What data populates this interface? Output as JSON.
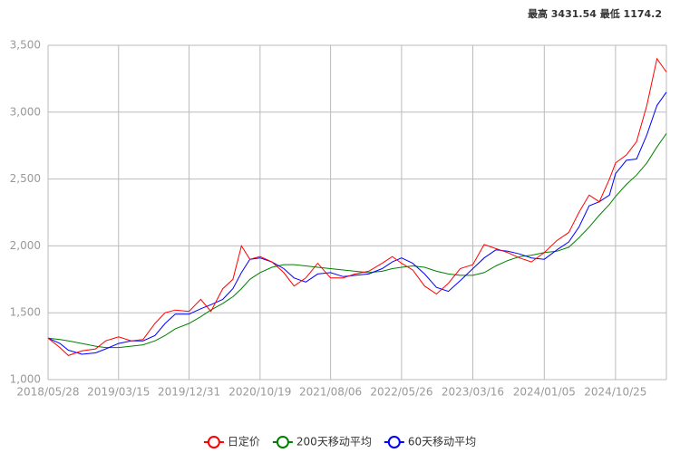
{
  "chart_data": {
    "type": "line",
    "summary": "最高 3431.54 最低 1174.2",
    "x": [
      "2018/05/28",
      "2018/07/16",
      "2018/08/20",
      "2018/10/15",
      "2018/12/10",
      "2019/01/21",
      "2019/03/15",
      "2019/05/06",
      "2019/06/24",
      "2019/08/12",
      "2019/09/23",
      "2019/11/04",
      "2019/12/31",
      "2020/02/17",
      "2020/03/30",
      "2020/05/18",
      "2020/06/29",
      "2020/08/03",
      "2020/09/07",
      "2020/10/19",
      "2020/12/07",
      "2021/01/25",
      "2021/03/08",
      "2021/04/26",
      "2021/06/14",
      "2021/08/06",
      "2021/09/27",
      "2021/11/15",
      "2022/01/10",
      "2022/03/07",
      "2022/04/18",
      "2022/05/26",
      "2022/07/11",
      "2022/08/29",
      "2022/10/17",
      "2022/12/05",
      "2023/01/23",
      "2023/03/16",
      "2023/05/02",
      "2023/06/19",
      "2023/08/07",
      "2023/09/25",
      "2023/11/13",
      "2024/01/05",
      "2024/02/26",
      "2024/04/15",
      "2024/05/27",
      "2024/07/08",
      "2024/08/19",
      "2024/09/30",
      "2024/10/25",
      "2024/12/09",
      "2025/01/20",
      "2025/03/03",
      "2025/04/14",
      "2025/05/23"
    ],
    "series": [
      {
        "name": "日定价",
        "color": "#ff0000",
        "values": [
          1310,
          1240,
          1180,
          1215,
          1230,
          1290,
          1320,
          1290,
          1300,
          1420,
          1500,
          1520,
          1510,
          1600,
          1510,
          1680,
          1750,
          2000,
          1900,
          1920,
          1880,
          1800,
          1700,
          1760,
          1870,
          1760,
          1760,
          1790,
          1810,
          1870,
          1920,
          1870,
          1820,
          1700,
          1640,
          1720,
          1830,
          1860,
          2010,
          1980,
          1950,
          1910,
          1880,
          1950,
          2040,
          2100,
          2250,
          2380,
          2330,
          2500,
          2620,
          2680,
          2780,
          3050,
          3400,
          3300
        ]
      },
      {
        "name": "200天移动平均",
        "color": "#008000",
        "values": [
          1310,
          1300,
          1290,
          1270,
          1250,
          1240,
          1240,
          1250,
          1260,
          1290,
          1330,
          1380,
          1420,
          1470,
          1520,
          1570,
          1620,
          1680,
          1750,
          1800,
          1840,
          1860,
          1860,
          1850,
          1840,
          1830,
          1820,
          1810,
          1800,
          1810,
          1830,
          1840,
          1850,
          1840,
          1810,
          1790,
          1780,
          1780,
          1800,
          1850,
          1890,
          1920,
          1930,
          1950,
          1960,
          1990,
          2060,
          2140,
          2230,
          2310,
          2370,
          2460,
          2530,
          2620,
          2740,
          2840
        ]
      },
      {
        "name": "60天移动平均",
        "color": "#0000ff",
        "values": [
          1310,
          1270,
          1220,
          1190,
          1200,
          1230,
          1270,
          1290,
          1290,
          1330,
          1420,
          1490,
          1490,
          1530,
          1560,
          1600,
          1680,
          1800,
          1900,
          1910,
          1880,
          1830,
          1760,
          1730,
          1790,
          1800,
          1770,
          1780,
          1790,
          1830,
          1880,
          1910,
          1870,
          1790,
          1690,
          1660,
          1740,
          1830,
          1910,
          1970,
          1960,
          1940,
          1910,
          1900,
          1970,
          2030,
          2140,
          2300,
          2330,
          2380,
          2540,
          2640,
          2650,
          2830,
          3050,
          3150
        ]
      }
    ],
    "xlim": [
      "2018/05/28",
      "2025/05/23"
    ],
    "xticks": [
      "2018/05/28",
      "2019/03/15",
      "2019/12/31",
      "2020/10/19",
      "2021/08/06",
      "2022/05/26",
      "2023/03/16",
      "2024/01/05",
      "2024/10/25"
    ],
    "ylim": [
      1000,
      3500
    ],
    "yticks": [
      {
        "value": 1000,
        "label": "1,000"
      },
      {
        "value": 1500,
        "label": "1,500"
      },
      {
        "value": 2000,
        "label": "2,000"
      },
      {
        "value": 2500,
        "label": "2,500"
      },
      {
        "value": 3000,
        "label": "3,000"
      },
      {
        "value": 3500,
        "label": "3,500"
      }
    ],
    "grid": true,
    "legend": "bottom"
  }
}
